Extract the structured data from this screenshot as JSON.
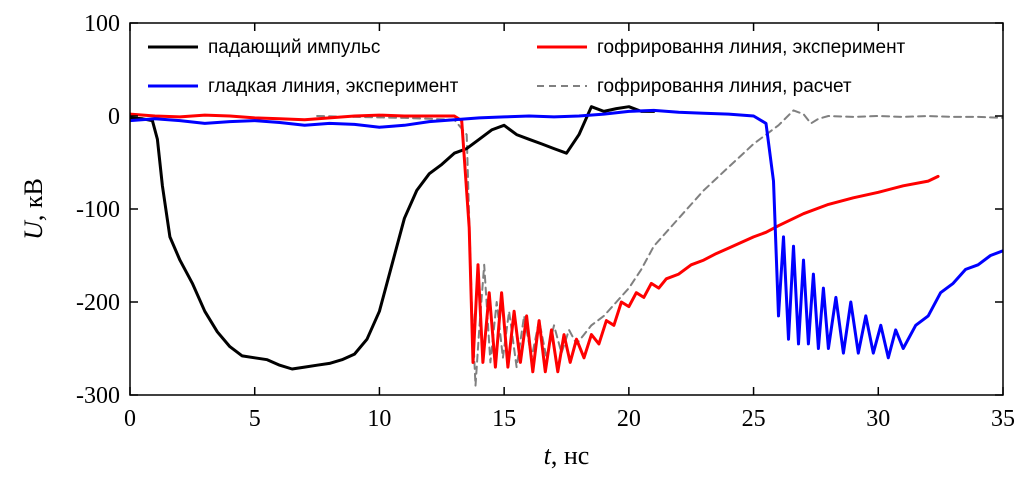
{
  "chart_data": {
    "type": "line",
    "title": "",
    "xlabel_italic": "t",
    "xlabel_rest": ", нс",
    "ylabel_italic": "U",
    "ylabel_rest": ", кВ",
    "xlim": [
      0,
      35
    ],
    "ylim": [
      -300,
      100
    ],
    "xticks": [
      0,
      5,
      10,
      15,
      20,
      25,
      30,
      35
    ],
    "yticks": [
      100,
      0,
      -100,
      -200,
      -300
    ],
    "xtick_labels": [
      "0",
      "5",
      "10",
      "15",
      "20",
      "25",
      "30",
      "35"
    ],
    "ytick_labels": [
      "100",
      "0",
      "-100",
      "-200",
      "-300"
    ],
    "grid": false,
    "legend_position": "top",
    "series": [
      {
        "name": "падающий импульс",
        "color": "#000000",
        "style": "solid",
        "x": [
          0,
          0.5,
          0.9,
          1.1,
          1.3,
          1.6,
          2.0,
          2.5,
          3.0,
          3.5,
          4.0,
          4.5,
          5.0,
          5.5,
          6.0,
          6.5,
          7.0,
          7.5,
          8.0,
          8.5,
          9.0,
          9.5,
          10.0,
          10.5,
          11.0,
          11.5,
          12.0,
          12.5,
          13.0,
          13.5,
          14.0,
          14.5,
          15.0,
          15.5,
          16.0,
          16.5,
          17.0,
          17.5,
          18.0,
          18.5,
          19.0,
          19.5,
          20.0,
          20.5,
          21.0
        ],
        "y": [
          -2,
          -3,
          -5,
          -25,
          -75,
          -130,
          -155,
          -180,
          -210,
          -232,
          -248,
          -258,
          -260,
          -262,
          -268,
          -272,
          -270,
          -268,
          -266,
          -262,
          -256,
          -240,
          -210,
          -160,
          -110,
          -80,
          -62,
          -52,
          -40,
          -35,
          -25,
          -15,
          -10,
          -20,
          -25,
          -30,
          -35,
          -40,
          -20,
          10,
          5,
          8,
          10,
          5,
          5
        ]
      },
      {
        "name": "гофрировання линия, эксперимент",
        "color": "#ff0000",
        "style": "solid",
        "x": [
          0,
          1,
          2,
          3,
          4,
          5,
          6,
          7,
          8,
          9,
          10,
          11,
          12,
          13,
          13.3,
          13.6,
          13.75,
          13.95,
          14.15,
          14.4,
          14.65,
          14.9,
          15.15,
          15.4,
          15.65,
          15.9,
          16.15,
          16.4,
          16.65,
          16.9,
          17.15,
          17.4,
          17.65,
          17.9,
          18.2,
          18.5,
          18.8,
          19.1,
          19.4,
          19.7,
          20.0,
          20.3,
          20.6,
          20.9,
          21.2,
          21.5,
          22.0,
          22.5,
          23.0,
          23.5,
          24.0,
          24.5,
          25.0,
          25.5,
          26.0,
          27.0,
          28.0,
          29.0,
          30.0,
          31.0,
          32.0,
          32.4
        ],
        "y": [
          2,
          0,
          -1,
          1,
          0,
          -2,
          -3,
          -4,
          -2,
          0,
          1,
          0,
          0,
          0,
          -5,
          -120,
          -265,
          -160,
          -265,
          -190,
          -270,
          -190,
          -270,
          -210,
          -265,
          -215,
          -275,
          -220,
          -275,
          -230,
          -275,
          -235,
          -265,
          -240,
          -260,
          -235,
          -245,
          -220,
          -225,
          -200,
          -205,
          -190,
          -195,
          -180,
          -185,
          -175,
          -170,
          -160,
          -155,
          -148,
          -142,
          -136,
          -130,
          -125,
          -118,
          -105,
          -95,
          -88,
          -82,
          -75,
          -70,
          -65
        ]
      },
      {
        "name": "гладкая линия, эксперимент",
        "color": "#0000ff",
        "style": "solid",
        "x": [
          0,
          1,
          2,
          3,
          4,
          5,
          6,
          7,
          8,
          9,
          10,
          11,
          12,
          13,
          14,
          15,
          16,
          17,
          18,
          19,
          20,
          21,
          22,
          23,
          24,
          25,
          25.5,
          25.8,
          26.0,
          26.2,
          26.4,
          26.6,
          26.8,
          27.0,
          27.2,
          27.4,
          27.6,
          27.8,
          28.0,
          28.3,
          28.6,
          28.9,
          29.2,
          29.5,
          29.8,
          30.1,
          30.4,
          30.7,
          31.0,
          31.5,
          32.0,
          32.5,
          33.0,
          33.5,
          34.0,
          34.5,
          35.0
        ],
        "y": [
          -5,
          -3,
          -5,
          -8,
          -6,
          -5,
          -7,
          -10,
          -8,
          -9,
          -12,
          -10,
          -6,
          -4,
          -2,
          -1,
          0,
          -1,
          0,
          2,
          5,
          6,
          4,
          3,
          2,
          0,
          -8,
          -70,
          -215,
          -130,
          -240,
          -140,
          -245,
          -155,
          -245,
          -170,
          -250,
          -185,
          -250,
          -195,
          -255,
          -200,
          -255,
          -215,
          -255,
          -225,
          -260,
          -230,
          -250,
          -225,
          -215,
          -190,
          -180,
          -165,
          -160,
          -150,
          -145
        ]
      },
      {
        "name": "гофрировання линия,  расчет",
        "color": "#808080",
        "style": "dashed",
        "x": [
          7.5,
          9,
          11,
          13,
          13.5,
          13.7,
          13.85,
          14.0,
          14.2,
          14.45,
          14.7,
          14.95,
          15.2,
          15.5,
          15.8,
          16.1,
          16.4,
          16.7,
          17.0,
          17.3,
          17.6,
          17.9,
          18.2,
          18.5,
          19.0,
          19.5,
          20.0,
          20.5,
          21.0,
          22.0,
          23.0,
          24.0,
          25.0,
          26.0,
          26.6,
          27.0,
          27.3,
          27.6,
          28.0,
          29.0,
          30.0,
          31.0,
          32.0,
          33.0,
          34.0,
          35.0
        ],
        "y": [
          0,
          -1,
          -2,
          -4,
          -20,
          -200,
          -290,
          -230,
          -160,
          -265,
          -200,
          -260,
          -210,
          -270,
          -215,
          -260,
          -220,
          -260,
          -225,
          -255,
          -230,
          -245,
          -235,
          -225,
          -215,
          -200,
          -185,
          -165,
          -140,
          -110,
          -80,
          -55,
          -30,
          -10,
          6,
          2,
          -8,
          -3,
          0,
          -1,
          0,
          -1,
          0,
          -1,
          -1,
          -2
        ]
      }
    ]
  }
}
